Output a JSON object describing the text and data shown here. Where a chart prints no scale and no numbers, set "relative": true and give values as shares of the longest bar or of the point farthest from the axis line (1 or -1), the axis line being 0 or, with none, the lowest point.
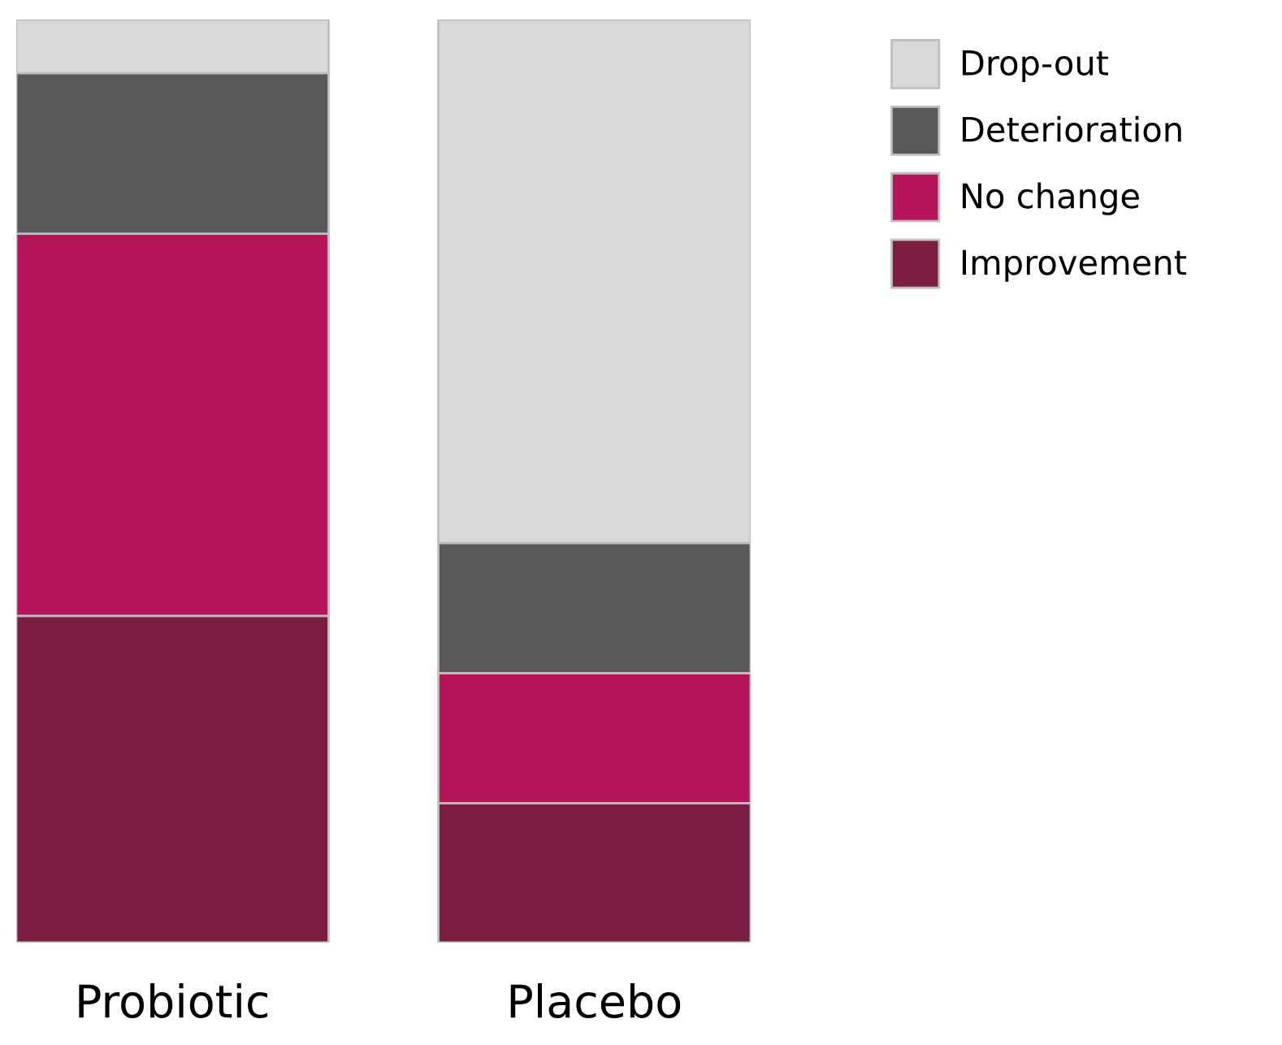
{
  "chart_data": {
    "type": "bar",
    "stacked": true,
    "relative": true,
    "categories": [
      "Probiotic",
      "Placebo"
    ],
    "series": [
      {
        "name": "Improvement",
        "color": "#7b1e42",
        "values": [
          0.354,
          0.151
        ]
      },
      {
        "name": "No change",
        "color": "#b5165a",
        "values": [
          0.414,
          0.141
        ]
      },
      {
        "name": "Deterioration",
        "color": "#595959",
        "values": [
          0.174,
          0.141
        ]
      },
      {
        "name": "Drop-out",
        "color": "#d9d9d9",
        "values": [
          0.058,
          0.567
        ]
      }
    ],
    "legend": "top right",
    "grid": false
  }
}
